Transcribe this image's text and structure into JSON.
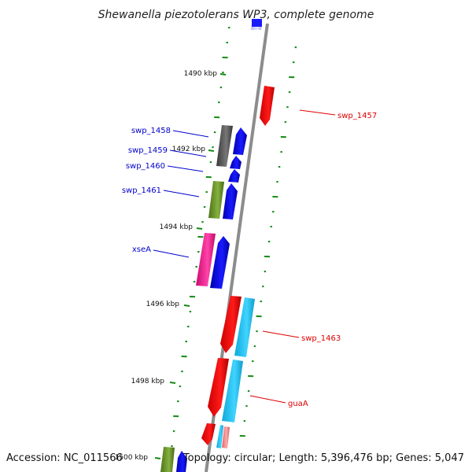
{
  "title": "Shewanella piezotolerans WP3, complete genome",
  "footer": {
    "accession": "Accession: NC_011566",
    "topology": "Topology: circular; Length: 5,396,476 bp; Genes: 5,047"
  },
  "ticks": [
    {
      "label": "1490 kbp",
      "kbp": 1490
    },
    {
      "label": "1492 kbp",
      "kbp": 1492
    },
    {
      "label": "1494 kbp",
      "kbp": 1494
    },
    {
      "label": "1496 kbp",
      "kbp": 1496
    },
    {
      "label": "1498 kbp",
      "kbp": 1498
    },
    {
      "label": "1500 kbp",
      "kbp": 1500
    }
  ],
  "gene_labels": [
    {
      "name": "swp_1457",
      "strand": "forward",
      "color": "#dd0000"
    },
    {
      "name": "swp_1458",
      "strand": "reverse",
      "color": "#0000cc"
    },
    {
      "name": "swp_1459",
      "strand": "reverse",
      "color": "#0000cc"
    },
    {
      "name": "swp_1460",
      "strand": "reverse",
      "color": "#0000cc"
    },
    {
      "name": "swp_1461",
      "strand": "reverse",
      "color": "#0000cc"
    },
    {
      "name": "xseA",
      "strand": "reverse",
      "color": "#0000cc"
    },
    {
      "name": "swp_1463",
      "strand": "forward",
      "color": "#dd0000"
    },
    {
      "name": "guaA",
      "strand": "forward",
      "color": "#dd0000"
    }
  ],
  "colors": {
    "forward_cds": "#ff0000",
    "reverse_cds": "#0000ff",
    "forward_cog": "#22c4ee",
    "cog_gray": "#555555",
    "cog_olive": "#5d8a22",
    "cog_magenta": "#ee1188",
    "cog_pink": "#ee7777",
    "backbone": "#8c8c8c",
    "gc_dots": "#138a13"
  }
}
